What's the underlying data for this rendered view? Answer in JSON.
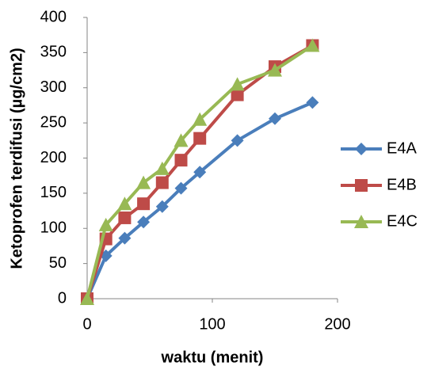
{
  "chart_data": {
    "type": "line",
    "x_label": "waktu (menit)",
    "y_label": "Ketoprofen terdifusi (µg/cm2)",
    "x": [
      0,
      15,
      30,
      45,
      60,
      75,
      90,
      120,
      150,
      180
    ],
    "series": [
      {
        "name": "E4A",
        "color": "#4a7ebb",
        "marker": "diamond",
        "values": [
          0,
          61,
          86,
          109,
          131,
          157,
          180,
          225,
          256,
          279
        ]
      },
      {
        "name": "E4B",
        "color": "#be4b48",
        "marker": "square",
        "values": [
          0,
          85,
          115,
          135,
          165,
          197,
          228,
          290,
          330,
          360
        ]
      },
      {
        "name": "E4C",
        "color": "#98b954",
        "marker": "triangle",
        "values": [
          0,
          105,
          135,
          165,
          185,
          225,
          255,
          305,
          325,
          360
        ]
      }
    ],
    "xlim": [
      0,
      200
    ],
    "xticks": [
      0,
      100,
      200
    ],
    "ylim": [
      0,
      400
    ],
    "yticks": [
      0,
      50,
      100,
      150,
      200,
      250,
      300,
      350,
      400
    ],
    "grid": false,
    "legend": "right"
  }
}
